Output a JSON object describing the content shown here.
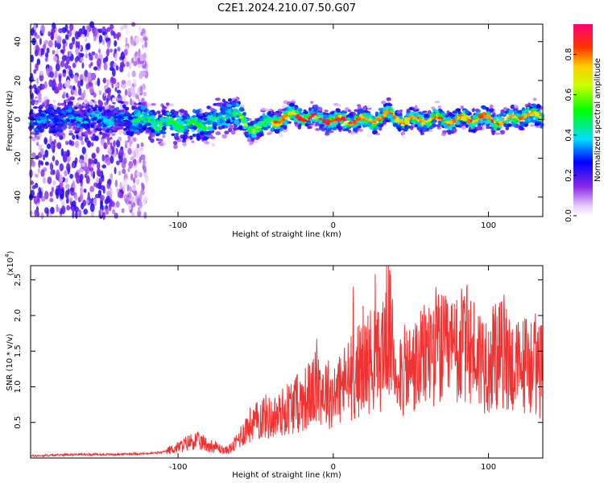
{
  "title": "C2E1.2024.210.07.50.G07",
  "chart_data": [
    {
      "type": "heatmap",
      "xlabel": "Height of straight line (km)",
      "ylabel": "Frequency (Hz)",
      "xlim": [
        -195,
        135
      ],
      "ylim": [
        -50,
        49
      ],
      "xticks": [
        -100,
        0,
        100
      ],
      "xtick_labels": [
        "-100",
        "0",
        "100"
      ],
      "yticks": [
        -40,
        -20,
        0,
        20,
        40
      ],
      "ytick_labels": [
        "-40",
        "-20",
        "0",
        "20",
        "40"
      ],
      "ridge": {
        "x": [
          -130,
          -110,
          -90,
          -75,
          -65,
          -55,
          -45,
          -35,
          -25,
          -15,
          -5,
          5,
          15,
          25,
          35,
          45,
          55,
          65,
          75,
          85,
          95,
          105,
          115,
          125,
          132
        ],
        "freq": [
          0,
          -2,
          -3,
          -1,
          5,
          -5,
          -3,
          0,
          2,
          1,
          0,
          -1,
          0,
          -1,
          3,
          -1,
          0,
          0,
          -1,
          0,
          1,
          -1,
          0,
          3,
          1
        ]
      },
      "colorbar": {
        "label": "Normalized spectral amplitude",
        "range": [
          0,
          0.95
        ],
        "ticks": [
          0.0,
          0.2,
          0.4,
          0.6,
          0.8
        ],
        "tick_labels": [
          "0.0",
          "0.2",
          "0.4",
          "0.6",
          "0.8"
        ]
      },
      "colors": {
        "frame": "#000000"
      }
    },
    {
      "type": "line",
      "xlabel": "Height of straight line (km)",
      "ylabel": "SNR (10 * v/v)",
      "yscale_label": "(x10",
      "yscale_exp": "4",
      "yscale_close": ")",
      "xlim": [
        -195,
        135
      ],
      "ylim": [
        0,
        2.7
      ],
      "xticks": [
        -100,
        0,
        100
      ],
      "xtick_labels": [
        "-100",
        "0",
        "100"
      ],
      "yticks": [
        0.5,
        1.0,
        1.5,
        2.0,
        2.5
      ],
      "ytick_labels": [
        "0.5",
        "1.0",
        "1.5",
        "2.0",
        "2.5"
      ],
      "series": [
        {
          "color": "#ee3333",
          "x": [
            -195,
            -180,
            -170,
            -160,
            -150,
            -140,
            -130,
            -120,
            -110,
            -100,
            -95,
            -90,
            -85,
            -80,
            -75,
            -70,
            -65,
            -60,
            -55,
            -50,
            -45,
            -40,
            -35,
            -30,
            -25,
            -20,
            -15,
            -10,
            -5,
            0,
            5,
            10,
            15,
            20,
            25,
            30,
            35,
            40,
            45,
            50,
            55,
            60,
            65,
            70,
            75,
            80,
            85,
            90,
            95,
            100,
            105,
            110,
            115,
            120,
            125,
            130,
            135
          ],
          "y": [
            0.03,
            0.04,
            0.05,
            0.05,
            0.05,
            0.05,
            0.06,
            0.06,
            0.08,
            0.15,
            0.2,
            0.25,
            0.22,
            0.18,
            0.15,
            0.1,
            0.15,
            0.3,
            0.45,
            0.5,
            0.6,
            0.55,
            0.6,
            0.7,
            0.75,
            0.8,
            0.9,
            1.0,
            0.95,
            0.85,
            1.0,
            1.1,
            1.2,
            1.3,
            1.4,
            1.35,
            1.9,
            1.3,
            1.2,
            1.25,
            1.3,
            1.45,
            1.6,
            1.5,
            1.45,
            1.5,
            1.6,
            1.5,
            1.4,
            1.35,
            1.4,
            1.5,
            1.3,
            1.25,
            1.35,
            1.3,
            1.2
          ]
        }
      ],
      "colors": {
        "frame": "#000000"
      }
    }
  ]
}
